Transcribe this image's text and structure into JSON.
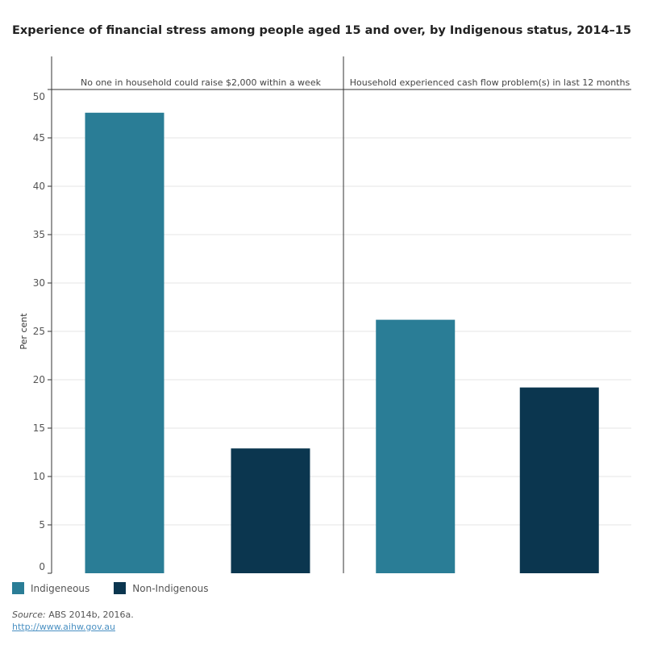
{
  "chart_data": {
    "type": "bar",
    "title": "Experience of financial stress among people aged 15 and over, by Indigenous status, 2014–15",
    "ylabel": "Per cent",
    "ylim": [
      0,
      50
    ],
    "yticks": [
      0,
      5,
      10,
      15,
      20,
      25,
      30,
      35,
      40,
      45,
      50
    ],
    "grid": true,
    "legend_position": "bottom-left",
    "facets": [
      "No one in household could raise $2,000 within a week",
      "Household experienced cash flow problem(s) in last 12 months"
    ],
    "series": [
      {
        "name": "Indigeneous",
        "color": "#2a7d96",
        "values": [
          47.6,
          26.2
        ]
      },
      {
        "name": "Non-Indigenous",
        "color": "#0b364f",
        "values": [
          12.9,
          19.2
        ]
      }
    ]
  },
  "footer": {
    "source_label": "Source:",
    "source_text": " ABS 2014b, 2016a.",
    "link": "http://www.aihw.gov.au"
  }
}
